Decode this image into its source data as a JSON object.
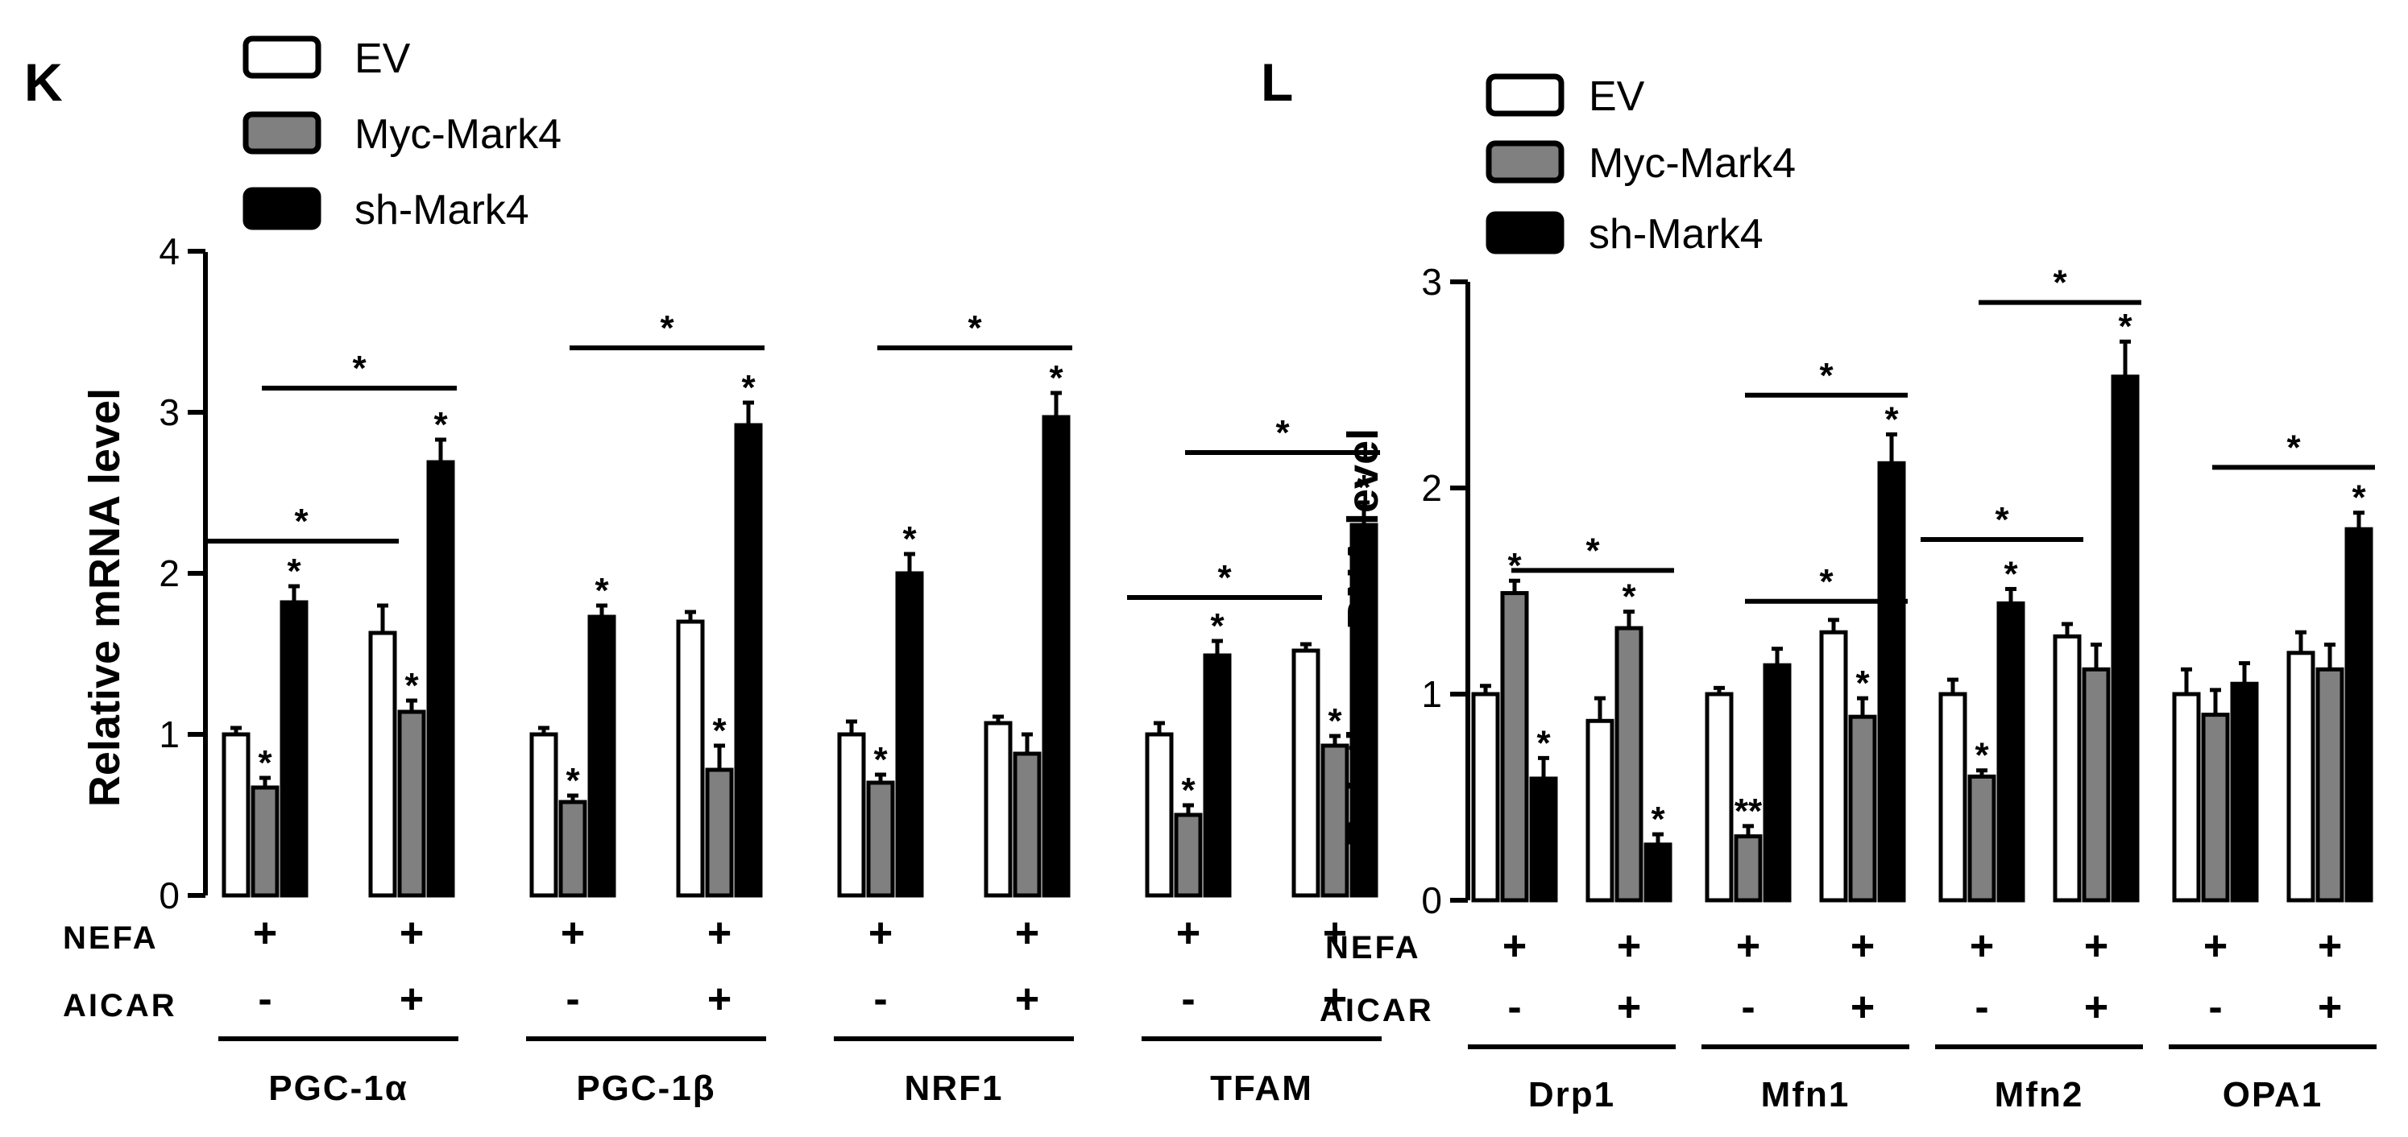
{
  "chart_data": [
    {
      "panel": "K",
      "type": "bar",
      "ylabel": "Relative mRNA level",
      "ylim": [
        0,
        4
      ],
      "yticks": [
        "0",
        "1",
        "2",
        "3",
        "4"
      ],
      "series": [
        {
          "name": "EV",
          "color": "#ffffff"
        },
        {
          "name": "Myc-Mark4",
          "color": "#808080"
        },
        {
          "name": "sh-Mark4",
          "color": "#000000"
        }
      ],
      "row_labels": {
        "nefa": "NEFA",
        "aicar": "AICAR"
      },
      "conditions": [
        {
          "nefa": "+",
          "aicar": "-"
        },
        {
          "nefa": "+",
          "aicar": "+"
        }
      ],
      "groups": [
        {
          "name": "PGC-1α",
          "values": [
            [
              1.0,
              0.67,
              1.82
            ],
            [
              1.63,
              1.14,
              2.69
            ]
          ],
          "errors": [
            [
              0.04,
              0.06,
              0.1
            ],
            [
              0.17,
              0.07,
              0.14
            ]
          ],
          "stars": [
            [
              "",
              "*",
              "*"
            ],
            [
              "",
              "*",
              "*"
            ]
          ],
          "brackets": [
            {
              "from": [
                0,
                0
              ],
              "to": [
                1,
                0
              ],
              "label": "*",
              "y": 2.2
            },
            {
              "from": [
                0,
                2
              ],
              "to": [
                1,
                2
              ],
              "label": "*",
              "y": 3.15
            }
          ]
        },
        {
          "name": "PGC-1β",
          "values": [
            [
              1.0,
              0.58,
              1.73
            ],
            [
              1.7,
              0.78,
              2.92
            ]
          ],
          "errors": [
            [
              0.04,
              0.04,
              0.07
            ],
            [
              0.06,
              0.15,
              0.14
            ]
          ],
          "stars": [
            [
              "",
              "*",
              "*"
            ],
            [
              "",
              "*",
              "*"
            ]
          ],
          "brackets": [
            {
              "from": [
                0,
                2
              ],
              "to": [
                1,
                2
              ],
              "label": "*",
              "y": 3.4
            }
          ]
        },
        {
          "name": "NRF1",
          "values": [
            [
              1.0,
              0.7,
              2.0
            ],
            [
              1.07,
              0.88,
              2.97
            ]
          ],
          "errors": [
            [
              0.08,
              0.05,
              0.12
            ],
            [
              0.04,
              0.12,
              0.15
            ]
          ],
          "stars": [
            [
              "",
              "*",
              "*"
            ],
            [
              "",
              "",
              "*"
            ]
          ],
          "brackets": [
            {
              "from": [
                0,
                2
              ],
              "to": [
                1,
                2
              ],
              "label": "*",
              "y": 3.4
            }
          ]
        },
        {
          "name": "TFAM",
          "values": [
            [
              1.0,
              0.5,
              1.49
            ],
            [
              1.52,
              0.93,
              2.3
            ]
          ],
          "errors": [
            [
              0.07,
              0.06,
              0.09
            ],
            [
              0.04,
              0.06,
              0.14
            ]
          ],
          "stars": [
            [
              "",
              "*",
              "*"
            ],
            [
              "",
              "*",
              "*"
            ]
          ],
          "brackets": [
            {
              "from": [
                0,
                0
              ],
              "to": [
                1,
                0
              ],
              "label": "*",
              "y": 1.85
            },
            {
              "from": [
                0,
                2
              ],
              "to": [
                1,
                2
              ],
              "label": "*",
              "y": 2.75
            }
          ]
        }
      ]
    },
    {
      "panel": "L",
      "type": "bar",
      "ylabel": "Relative mRNA level",
      "ylim": [
        0,
        3
      ],
      "yticks": [
        "0",
        "1",
        "2",
        "3"
      ],
      "series": [
        {
          "name": "EV",
          "color": "#ffffff"
        },
        {
          "name": "Myc-Mark4",
          "color": "#808080"
        },
        {
          "name": "sh-Mark4",
          "color": "#000000"
        }
      ],
      "row_labels": {
        "nefa": "NEFA",
        "aicar": "AICAR"
      },
      "conditions": [
        {
          "nefa": "+",
          "aicar": "-"
        },
        {
          "nefa": "+",
          "aicar": "+"
        }
      ],
      "groups": [
        {
          "name": "Drp1",
          "values": [
            [
              1.0,
              1.49,
              0.59
            ],
            [
              0.87,
              1.32,
              0.27
            ]
          ],
          "errors": [
            [
              0.04,
              0.06,
              0.1
            ],
            [
              0.11,
              0.08,
              0.05
            ]
          ],
          "stars": [
            [
              "",
              "*",
              "*"
            ],
            [
              "",
              "*",
              "*"
            ]
          ],
          "brackets": [
            {
              "from": [
                0,
                2
              ],
              "to": [
                1,
                2
              ],
              "label": "*",
              "y": 1.6
            }
          ]
        },
        {
          "name": "Mfn1",
          "values": [
            [
              1.0,
              0.31,
              1.14
            ],
            [
              1.3,
              0.89,
              2.12
            ]
          ],
          "errors": [
            [
              0.03,
              0.05,
              0.08
            ],
            [
              0.06,
              0.09,
              0.14
            ]
          ],
          "stars": [
            [
              "",
              "**",
              ""
            ],
            [
              "",
              "*",
              "*"
            ]
          ],
          "brackets": [
            {
              "from": [
                0,
                2
              ],
              "to": [
                1,
                2
              ],
              "label": "*",
              "y": 1.45
            },
            {
              "from": [
                0,
                2
              ],
              "to": [
                1,
                2
              ],
              "label": "*",
              "y": 2.45
            }
          ]
        },
        {
          "name": "Mfn2",
          "values": [
            [
              1.0,
              0.6,
              1.44
            ],
            [
              1.28,
              1.12,
              2.54
            ]
          ],
          "errors": [
            [
              0.07,
              0.03,
              0.07
            ],
            [
              0.06,
              0.12,
              0.17
            ]
          ],
          "stars": [
            [
              "",
              "*",
              "*"
            ],
            [
              "",
              "",
              "*"
            ]
          ],
          "brackets": [
            {
              "from": [
                0,
                0
              ],
              "to": [
                1,
                0
              ],
              "label": "*",
              "y": 1.75
            },
            {
              "from": [
                0,
                2
              ],
              "to": [
                1,
                2
              ],
              "label": "*",
              "y": 2.9
            }
          ]
        },
        {
          "name": "OPA1",
          "values": [
            [
              1.0,
              0.9,
              1.05
            ],
            [
              1.2,
              1.12,
              1.8
            ]
          ],
          "errors": [
            [
              0.12,
              0.12,
              0.1
            ],
            [
              0.1,
              0.12,
              0.08
            ]
          ],
          "stars": [
            [
              "",
              "",
              ""
            ],
            [
              "",
              "",
              "*"
            ]
          ],
          "brackets": [
            {
              "from": [
                0,
                2
              ],
              "to": [
                1,
                2
              ],
              "label": "*",
              "y": 2.1
            }
          ]
        }
      ]
    }
  ]
}
